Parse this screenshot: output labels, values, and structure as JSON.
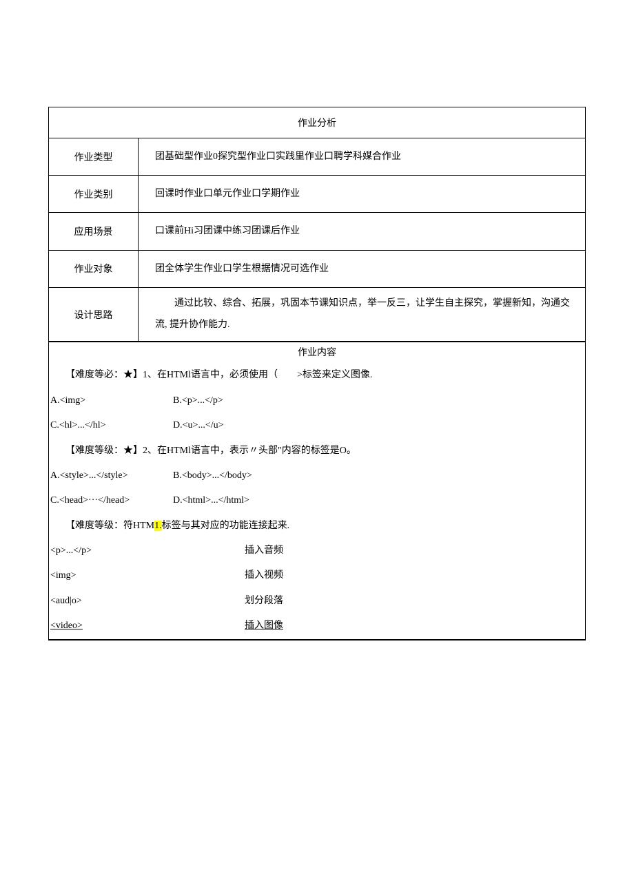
{
  "header": "作业分析",
  "meta": {
    "row1": {
      "label": "作业类型",
      "value": "团基础型作业0探究型作业口实践里作业口聘学科媒合作业"
    },
    "row2": {
      "label": "作业类别",
      "value": "回课时作业口单元作业口学期作业"
    },
    "row3": {
      "label": "应用场景",
      "value": "口课前Hi习团课中练习团课后作业"
    },
    "row4": {
      "label": "作业对象",
      "value": "团全体学生作业口学生根据情况可选作业"
    },
    "row5": {
      "label": "设计思路",
      "value": "　　通过比较、综合、拓展，巩固本节课知识点，举一反三，让学生自主探究，掌握新知，沟通交流, 提升协作能力."
    }
  },
  "contentHeader": "作业内容",
  "q1": {
    "text": "【难度等必：★】1、在HTMl语言中，必须使用（　　>标签来定义图像.",
    "optA": "A.<img>",
    "optB": "B.<p>...</p>",
    "optC": "C.<hl>...</hl>",
    "optD": "D.<u>...</u>"
  },
  "q2": {
    "text": "【难度等级：★】2、在HTMl语言中，表示〃头部\"内容的标签是O。",
    "optA": "A.<style>...</style>",
    "optB": "B.<body>...</body>",
    "optC": "C.<head>···</head>",
    "optD": "D.<html>...</html>"
  },
  "q3": {
    "textPre": "【难度等级：符HTM",
    "highlight": "1.",
    "textPost": "标签与其对应的功能连接起来.",
    "m1l": "<p>...</p>",
    "m1r": "插入音频",
    "m2l": "<img>",
    "m2r": "插入视频",
    "m3l": "<aud|o>",
    "m3r": "划分段落",
    "m4l": "<video>",
    "m4r": "插入图像"
  }
}
